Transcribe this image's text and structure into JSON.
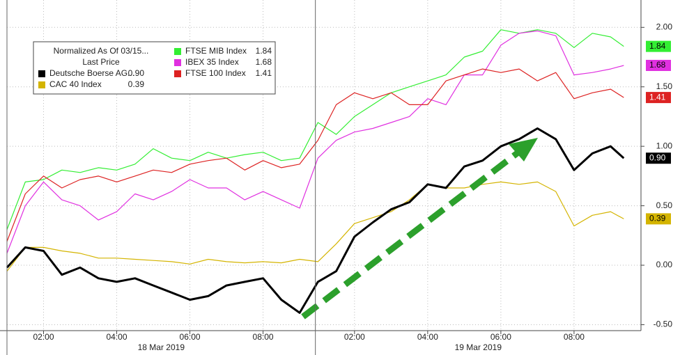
{
  "chart_data": {
    "type": "line",
    "legend_title": "Normalized As Of 03/15...",
    "legend_subtitle": "Last Price",
    "x": [
      0,
      0.5,
      1,
      1.5,
      2,
      2.5,
      3,
      3.5,
      4,
      4.5,
      5,
      5.5,
      6,
      6.5,
      7,
      7.5,
      8,
      8.5,
      9,
      9.5,
      10,
      10.5,
      11,
      11.5,
      12,
      12.5,
      13,
      13.5,
      14,
      14.5,
      15,
      15.5,
      16,
      16.5,
      16.86
    ],
    "xlim": [
      0,
      17.33
    ],
    "xticks": [
      {
        "value": 1,
        "label": "02:00"
      },
      {
        "value": 3,
        "label": "04:00"
      },
      {
        "value": 5,
        "label": "06:00"
      },
      {
        "value": 7,
        "label": "08:00"
      },
      {
        "value": 9.5,
        "label": "02:00"
      },
      {
        "value": 11.5,
        "label": "04:00"
      },
      {
        "value": 13.5,
        "label": "06:00"
      },
      {
        "value": 15.5,
        "label": "08:00"
      }
    ],
    "day_labels": [
      {
        "label": "18 Mar 2019",
        "start": 0,
        "end": 8.43
      },
      {
        "label": "19 Mar 2019",
        "start": 8.43,
        "end": 17.33
      }
    ],
    "ylim": [
      -0.55,
      2.23
    ],
    "yticks": [
      {
        "value": -0.5,
        "label": "-0.50"
      },
      {
        "value": 0,
        "label": "0.00"
      },
      {
        "value": 0.5,
        "label": "0.50"
      },
      {
        "value": 1,
        "label": "1.00"
      },
      {
        "value": 1.5,
        "label": "1.50"
      },
      {
        "value": 2,
        "label": "2.00"
      }
    ],
    "grid": true,
    "series": [
      {
        "name": "Deutsche Boerse AG...",
        "color": "#000000",
        "last_price": {
          "value": 0.9,
          "label": "0.90"
        },
        "values": [
          -0.02,
          0.15,
          0.12,
          -0.08,
          -0.02,
          -0.11,
          -0.14,
          -0.11,
          -0.17,
          -0.23,
          -0.29,
          -0.26,
          -0.17,
          -0.14,
          -0.11,
          -0.29,
          -0.4,
          -0.14,
          -0.05,
          0.24,
          0.36,
          0.47,
          0.53,
          0.68,
          0.65,
          0.83,
          0.88,
          1.0,
          1.06,
          1.15,
          1.06,
          0.8,
          0.94,
          1.0,
          0.9
        ]
      },
      {
        "name": "CAC 40 Index",
        "color": "#d4b400",
        "last_price": {
          "value": 0.39,
          "label": "0.39"
        },
        "values": [
          -0.05,
          0.15,
          0.15,
          0.12,
          0.1,
          0.06,
          0.06,
          0.05,
          0.04,
          0.03,
          0.01,
          0.05,
          0.03,
          0.02,
          0.03,
          0.02,
          0.05,
          0.03,
          0.18,
          0.35,
          0.4,
          0.45,
          0.55,
          0.68,
          0.65,
          0.65,
          0.68,
          0.7,
          0.68,
          0.7,
          0.62,
          0.33,
          0.42,
          0.45,
          0.39
        ]
      },
      {
        "name": "FTSE MIB Index",
        "color": "#33ee33",
        "last_price": {
          "value": 1.84,
          "label": "1.84"
        },
        "values": [
          0.3,
          0.7,
          0.72,
          0.8,
          0.78,
          0.82,
          0.8,
          0.85,
          0.98,
          0.9,
          0.88,
          0.95,
          0.9,
          0.93,
          0.95,
          0.88,
          0.9,
          1.2,
          1.1,
          1.25,
          1.35,
          1.45,
          1.5,
          1.55,
          1.6,
          1.75,
          1.8,
          1.98,
          1.95,
          1.98,
          1.95,
          1.83,
          1.95,
          1.92,
          1.84
        ]
      },
      {
        "name": "IBEX 35 Index",
        "color": "#e030e0",
        "last_price": {
          "value": 1.68,
          "label": "1.68"
        },
        "values": [
          0.1,
          0.5,
          0.7,
          0.55,
          0.5,
          0.38,
          0.45,
          0.6,
          0.55,
          0.62,
          0.72,
          0.65,
          0.65,
          0.55,
          0.62,
          0.55,
          0.48,
          0.9,
          1.05,
          1.12,
          1.15,
          1.2,
          1.25,
          1.4,
          1.35,
          1.6,
          1.6,
          1.85,
          1.95,
          1.97,
          1.93,
          1.6,
          1.62,
          1.65,
          1.68
        ]
      },
      {
        "name": "FTSE 100 Index",
        "color": "#dd2222",
        "last_price": {
          "value": 1.41,
          "label": "1.41"
        },
        "values": [
          0.2,
          0.6,
          0.75,
          0.65,
          0.72,
          0.75,
          0.7,
          0.75,
          0.8,
          0.78,
          0.85,
          0.88,
          0.9,
          0.8,
          0.88,
          0.82,
          0.85,
          1.05,
          1.35,
          1.45,
          1.4,
          1.45,
          1.35,
          1.35,
          1.55,
          1.6,
          1.65,
          1.62,
          1.65,
          1.55,
          1.62,
          1.4,
          1.45,
          1.48,
          1.41
        ]
      }
    ]
  }
}
